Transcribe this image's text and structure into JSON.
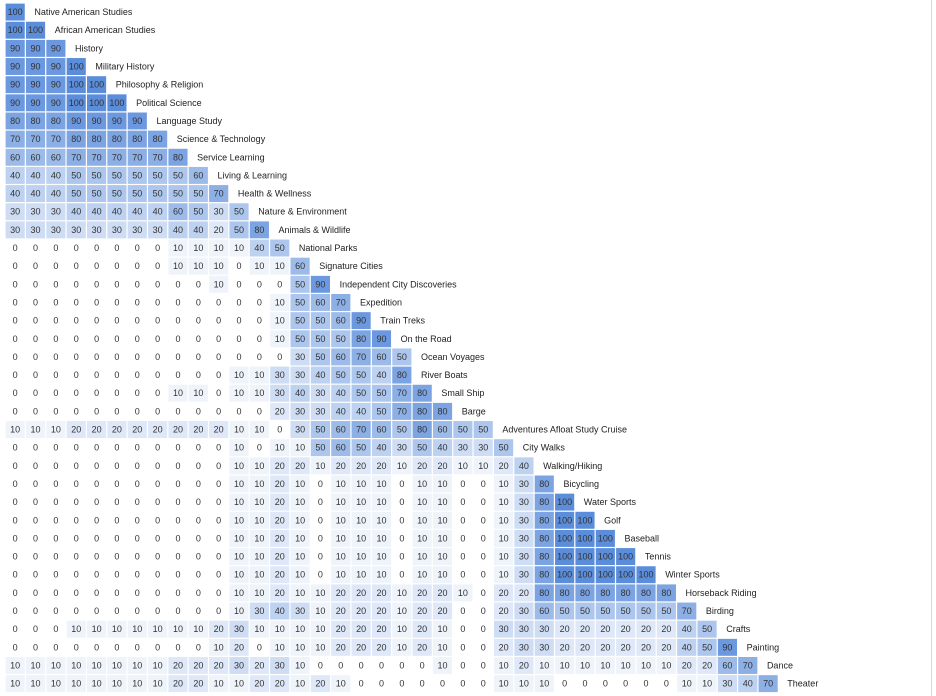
{
  "chart_data": {
    "type": "heatmap",
    "layout": "lower-triangular correlation matrix with row labels on the diagonal",
    "color_scale": {
      "low": "#ffffff",
      "high": "#5b8ddb",
      "min": 0,
      "max": 100
    },
    "value_text_color": "#333333",
    "rows": [
      {
        "label": "Native American Studies",
        "values": [
          100
        ]
      },
      {
        "label": "African American Studies",
        "values": [
          100,
          100
        ]
      },
      {
        "label": "History",
        "values": [
          90,
          90,
          90
        ]
      },
      {
        "label": "Military History",
        "values": [
          90,
          90,
          90,
          100
        ]
      },
      {
        "label": "Philosophy & Religion",
        "values": [
          90,
          90,
          90,
          100,
          100
        ]
      },
      {
        "label": "Political Science",
        "values": [
          90,
          90,
          90,
          100,
          100,
          100
        ]
      },
      {
        "label": "Language Study",
        "values": [
          80,
          80,
          80,
          90,
          90,
          90,
          90
        ]
      },
      {
        "label": "Science & Technology",
        "values": [
          70,
          70,
          70,
          80,
          80,
          80,
          80,
          80
        ]
      },
      {
        "label": "Service Learning",
        "values": [
          60,
          60,
          60,
          70,
          70,
          70,
          70,
          70,
          80
        ]
      },
      {
        "label": "Living & Learning",
        "values": [
          40,
          40,
          40,
          50,
          50,
          50,
          50,
          50,
          50,
          60
        ]
      },
      {
        "label": "Health & Wellness",
        "values": [
          40,
          40,
          40,
          50,
          50,
          50,
          50,
          50,
          50,
          50,
          70
        ]
      },
      {
        "label": "Nature & Environment",
        "values": [
          30,
          30,
          30,
          40,
          40,
          40,
          40,
          40,
          60,
          50,
          30,
          50
        ]
      },
      {
        "label": "Animals & Wildlife",
        "values": [
          30,
          30,
          30,
          30,
          30,
          30,
          30,
          30,
          40,
          40,
          20,
          50,
          80
        ]
      },
      {
        "label": "National Parks",
        "values": [
          0,
          0,
          0,
          0,
          0,
          0,
          0,
          0,
          10,
          10,
          10,
          10,
          40,
          50
        ]
      },
      {
        "label": "Signature Cities",
        "values": [
          0,
          0,
          0,
          0,
          0,
          0,
          0,
          0,
          10,
          10,
          10,
          0,
          10,
          10,
          60
        ]
      },
      {
        "label": "Independent City Discoveries",
        "values": [
          0,
          0,
          0,
          0,
          0,
          0,
          0,
          0,
          0,
          0,
          10,
          0,
          0,
          0,
          50,
          90
        ]
      },
      {
        "label": "Expedition",
        "values": [
          0,
          0,
          0,
          0,
          0,
          0,
          0,
          0,
          0,
          0,
          0,
          0,
          0,
          10,
          50,
          60,
          70
        ]
      },
      {
        "label": "Train Treks",
        "values": [
          0,
          0,
          0,
          0,
          0,
          0,
          0,
          0,
          0,
          0,
          0,
          0,
          0,
          10,
          50,
          50,
          60,
          90
        ]
      },
      {
        "label": "On the Road",
        "values": [
          0,
          0,
          0,
          0,
          0,
          0,
          0,
          0,
          0,
          0,
          0,
          0,
          0,
          10,
          50,
          50,
          50,
          80,
          90
        ]
      },
      {
        "label": "Ocean Voyages",
        "values": [
          0,
          0,
          0,
          0,
          0,
          0,
          0,
          0,
          0,
          0,
          0,
          0,
          0,
          0,
          30,
          50,
          60,
          70,
          60,
          50
        ]
      },
      {
        "label": "River Boats",
        "values": [
          0,
          0,
          0,
          0,
          0,
          0,
          0,
          0,
          0,
          0,
          0,
          10,
          10,
          30,
          30,
          40,
          50,
          50,
          40,
          80
        ]
      },
      {
        "label": "Small Ship",
        "values": [
          0,
          0,
          0,
          0,
          0,
          0,
          0,
          0,
          10,
          10,
          0,
          10,
          10,
          30,
          40,
          30,
          40,
          50,
          50,
          70,
          80
        ]
      },
      {
        "label": "Barge",
        "values": [
          0,
          0,
          0,
          0,
          0,
          0,
          0,
          0,
          0,
          0,
          0,
          0,
          0,
          20,
          30,
          30,
          40,
          40,
          50,
          70,
          80,
          80
        ]
      },
      {
        "label": "Adventures Afloat Study Cruise",
        "values": [
          10,
          10,
          10,
          20,
          20,
          20,
          20,
          20,
          20,
          20,
          20,
          10,
          10,
          0,
          30,
          50,
          60,
          70,
          60,
          50,
          80,
          60,
          50,
          50
        ]
      },
      {
        "label": "City Walks",
        "values": [
          0,
          0,
          0,
          0,
          0,
          0,
          0,
          0,
          0,
          0,
          0,
          10,
          0,
          10,
          10,
          50,
          60,
          50,
          40,
          30,
          50,
          40,
          30,
          30,
          50
        ]
      },
      {
        "label": "Walking/Hiking",
        "values": [
          0,
          0,
          0,
          0,
          0,
          0,
          0,
          0,
          0,
          0,
          0,
          10,
          10,
          20,
          20,
          10,
          20,
          20,
          20,
          10,
          20,
          20,
          10,
          10,
          20,
          40
        ]
      },
      {
        "label": "Bicycling",
        "values": [
          0,
          0,
          0,
          0,
          0,
          0,
          0,
          0,
          0,
          0,
          0,
          10,
          10,
          20,
          10,
          0,
          10,
          10,
          10,
          0,
          10,
          10,
          0,
          0,
          10,
          30,
          80
        ]
      },
      {
        "label": "Water Sports",
        "values": [
          0,
          0,
          0,
          0,
          0,
          0,
          0,
          0,
          0,
          0,
          0,
          10,
          10,
          20,
          10,
          0,
          10,
          10,
          10,
          0,
          10,
          10,
          0,
          0,
          10,
          30,
          80,
          100
        ]
      },
      {
        "label": "Golf",
        "values": [
          0,
          0,
          0,
          0,
          0,
          0,
          0,
          0,
          0,
          0,
          0,
          10,
          10,
          20,
          10,
          0,
          10,
          10,
          10,
          0,
          10,
          10,
          0,
          0,
          10,
          30,
          80,
          100,
          100
        ]
      },
      {
        "label": "Baseball",
        "values": [
          0,
          0,
          0,
          0,
          0,
          0,
          0,
          0,
          0,
          0,
          0,
          10,
          10,
          20,
          10,
          0,
          10,
          10,
          10,
          0,
          10,
          10,
          0,
          0,
          10,
          30,
          80,
          100,
          100,
          100
        ]
      },
      {
        "label": "Tennis",
        "values": [
          0,
          0,
          0,
          0,
          0,
          0,
          0,
          0,
          0,
          0,
          0,
          10,
          10,
          20,
          10,
          0,
          10,
          10,
          10,
          0,
          10,
          10,
          0,
          0,
          10,
          30,
          80,
          100,
          100,
          100,
          100
        ]
      },
      {
        "label": "Winter Sports",
        "values": [
          0,
          0,
          0,
          0,
          0,
          0,
          0,
          0,
          0,
          0,
          0,
          10,
          10,
          20,
          10,
          0,
          10,
          10,
          10,
          0,
          10,
          10,
          0,
          0,
          10,
          30,
          80,
          100,
          100,
          100,
          100,
          100
        ]
      },
      {
        "label": "Horseback Riding",
        "values": [
          0,
          0,
          0,
          0,
          0,
          0,
          0,
          0,
          0,
          0,
          0,
          10,
          10,
          20,
          10,
          10,
          20,
          20,
          20,
          10,
          20,
          20,
          10,
          0,
          20,
          20,
          80,
          80,
          80,
          80,
          80,
          80,
          80
        ]
      },
      {
        "label": "Birding",
        "values": [
          0,
          0,
          0,
          0,
          0,
          0,
          0,
          0,
          0,
          0,
          0,
          10,
          30,
          40,
          30,
          10,
          20,
          20,
          20,
          10,
          20,
          20,
          0,
          0,
          20,
          30,
          60,
          50,
          50,
          50,
          50,
          50,
          50,
          70
        ]
      },
      {
        "label": "Crafts",
        "values": [
          0,
          0,
          0,
          10,
          10,
          10,
          10,
          10,
          10,
          10,
          20,
          30,
          10,
          10,
          10,
          10,
          20,
          20,
          20,
          10,
          20,
          10,
          0,
          0,
          30,
          30,
          30,
          20,
          20,
          20,
          20,
          20,
          20,
          40,
          50
        ]
      },
      {
        "label": "Painting",
        "values": [
          0,
          0,
          0,
          0,
          0,
          0,
          0,
          0,
          0,
          0,
          10,
          20,
          0,
          10,
          10,
          10,
          20,
          20,
          20,
          10,
          20,
          10,
          0,
          0,
          20,
          30,
          30,
          20,
          20,
          20,
          20,
          20,
          20,
          40,
          50,
          90
        ]
      },
      {
        "label": "Dance",
        "values": [
          10,
          10,
          10,
          10,
          10,
          10,
          10,
          10,
          20,
          20,
          20,
          30,
          20,
          30,
          10,
          0,
          0,
          0,
          0,
          0,
          0,
          10,
          0,
          0,
          10,
          20,
          10,
          10,
          10,
          10,
          10,
          10,
          10,
          20,
          20,
          60,
          70
        ]
      },
      {
        "label": "Theater",
        "values": [
          10,
          10,
          10,
          10,
          10,
          10,
          10,
          10,
          20,
          20,
          10,
          10,
          20,
          20,
          10,
          20,
          10,
          0,
          0,
          0,
          0,
          0,
          0,
          0,
          10,
          10,
          10,
          0,
          0,
          0,
          0,
          0,
          0,
          10,
          10,
          30,
          40,
          70
        ]
      }
    ]
  }
}
